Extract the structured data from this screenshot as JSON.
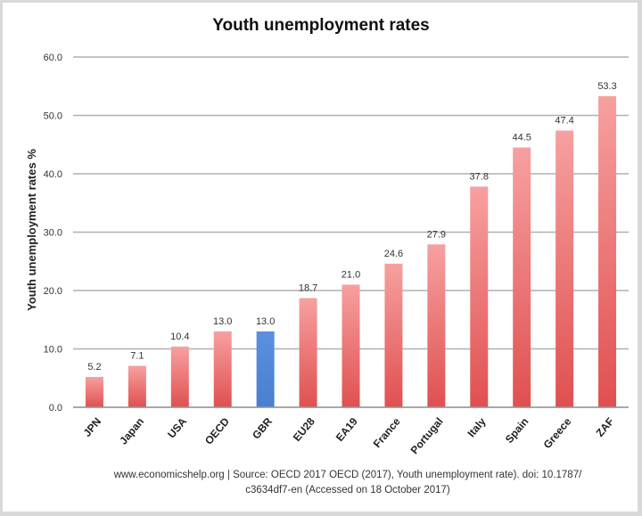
{
  "chart_data": {
    "type": "bar",
    "title": "Youth unemployment rates",
    "xlabel": "",
    "ylabel": "Youth unemployment rates %",
    "ylim": [
      0,
      60
    ],
    "yticks": [
      "0.0",
      "10.0",
      "20.0",
      "30.0",
      "40.0",
      "50.0",
      "60.0"
    ],
    "grid": true,
    "categories": [
      "JPN",
      "Japan",
      "USA",
      "OECD",
      "GBR",
      "EU28",
      "EA19",
      "France",
      "Portugal",
      "Italy",
      "Spain",
      "Greece",
      "ZAF"
    ],
    "values": [
      5.2,
      7.1,
      10.4,
      13.0,
      13.0,
      18.7,
      21.0,
      24.6,
      27.9,
      37.8,
      44.5,
      47.4,
      53.3
    ],
    "data_labels": [
      "5.2",
      "7.1",
      "10.4",
      "13.0",
      "13.0",
      "18.7",
      "21.0",
      "24.6",
      "27.9",
      "37.8",
      "44.5",
      "47.4",
      "53.3"
    ],
    "highlight": "GBR",
    "colors": {
      "bar": "#e05050",
      "bar_light": "#f7a0a0",
      "highlight": "#4a7fd0",
      "highlight_light": "#5a90e0"
    }
  },
  "source": {
    "line1": "www.economicshelp.org | Source: OECD 2017 OECD (2017), Youth unemployment rate). doi: 10.1787/",
    "line2": "c3634df7-en (Accessed on 18 October 2017)"
  }
}
